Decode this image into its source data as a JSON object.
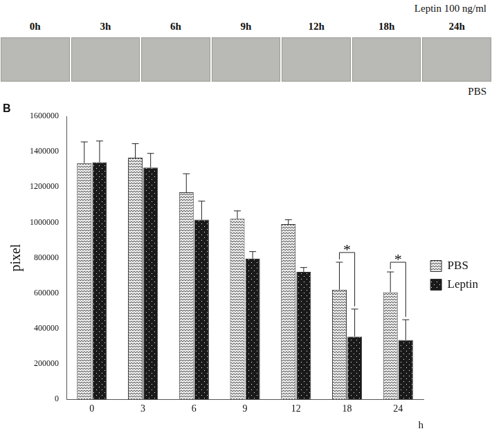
{
  "panel_a": {
    "treatment_label": "Leptin 100 ng/ml",
    "times": [
      "0h",
      "3h",
      "6h",
      "9h",
      "12h",
      "18h",
      "24h"
    ],
    "control_label": "PBS"
  },
  "chart_data": {
    "type": "bar",
    "panel_label": "B",
    "categories": [
      "0",
      "3",
      "6",
      "9",
      "12",
      "18",
      "24"
    ],
    "x_label": "h",
    "y_label": "pixel",
    "ylim": [
      0,
      1600000
    ],
    "yticks": [
      0,
      200000,
      400000,
      600000,
      800000,
      1000000,
      1200000,
      1400000,
      1600000
    ],
    "grid": false,
    "legend": "right",
    "series": [
      {
        "name": "PBS",
        "color": "#e6e6e6",
        "values": [
          1335000,
          1365000,
          1170000,
          1020000,
          990000,
          620000,
          605000
        ],
        "errors": [
          120000,
          80000,
          105000,
          45000,
          25000,
          155000,
          115000
        ]
      },
      {
        "name": "Leptin",
        "color": "#1a1a1a",
        "values": [
          1340000,
          1310000,
          1015000,
          795000,
          720000,
          355000,
          335000
        ],
        "errors": [
          120000,
          80000,
          105000,
          40000,
          25000,
          155000,
          115000
        ]
      }
    ],
    "annotations": [
      {
        "category": "18",
        "text": "*"
      },
      {
        "category": "24",
        "text": "*"
      }
    ]
  }
}
